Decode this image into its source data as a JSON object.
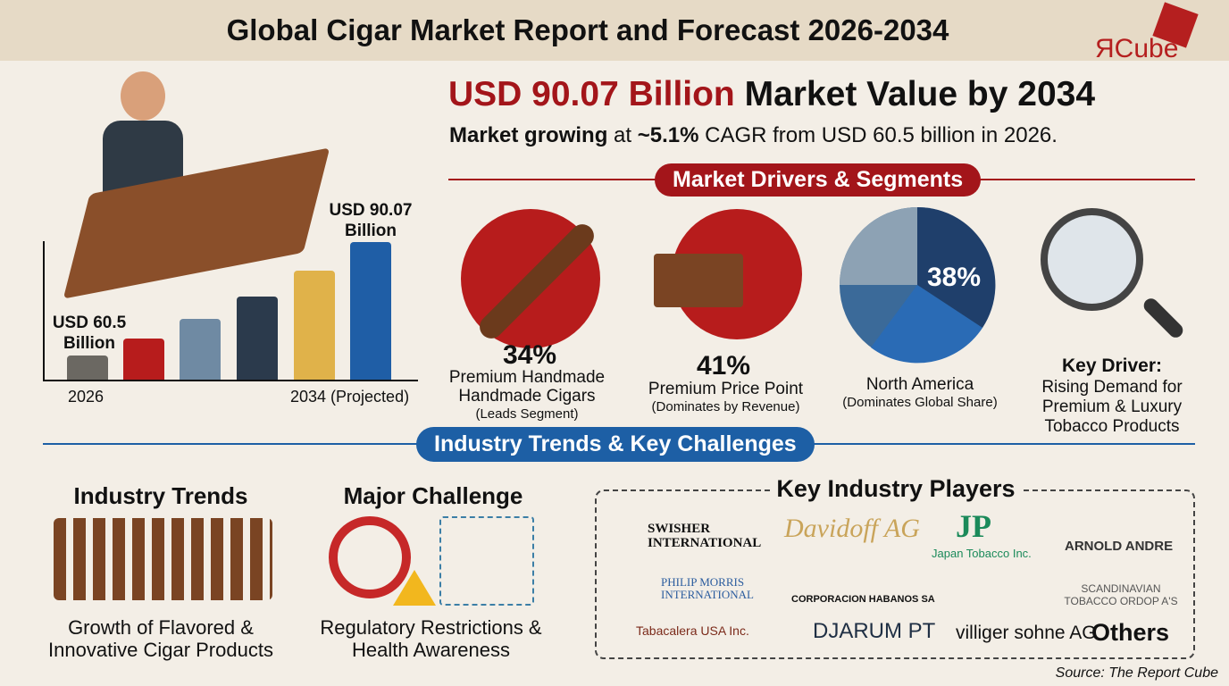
{
  "header": {
    "title": "Global Cigar Market Report and Forecast 2026-2034",
    "logo_text": "ЯCube"
  },
  "headline": {
    "value": "USD 90.07 Billion",
    "rest": "Market Value by 2034",
    "sub_bold": "Market growing",
    "sub_mid": "at",
    "sub_cagr": "~5.1%",
    "sub_rest": "CAGR from USD 60.5 billion in 2026."
  },
  "bar_chart": {
    "start_label": "USD 60.5 Billion",
    "end_label": "USD 90.07 Billion",
    "x_start": "2026",
    "x_end": "2034 (Projected)"
  },
  "drivers": {
    "title": "Market Drivers & Segments",
    "items": [
      {
        "pct": "34%",
        "label": "Premium Handmade Handmade Cigars",
        "note": "(Leads Segment)"
      },
      {
        "pct": "41%",
        "label": "Premium Price Point",
        "note": "(Dominates by Revenue)"
      },
      {
        "pct": "38%",
        "label": "North America",
        "note": "(Dominates Global Share)"
      },
      {
        "pct": "",
        "label": "Key Driver:",
        "note": "Rising Demand for Premium & Luxury Tobacco Products"
      }
    ]
  },
  "trends": {
    "title": "Industry Trends & Key Challenges",
    "industry_trends": {
      "heading": "Industry Trends",
      "text": "Growth of Flavored & Innovative Cigar Products"
    },
    "challenge": {
      "heading": "Major Challenge",
      "text": "Regulatory Restrictions & Health Awareness"
    }
  },
  "players": {
    "title": "Key Industry Players",
    "items": [
      "SWISHER INTERNATIONAL",
      "Davidoff AG",
      "Japan Tobacco Inc.",
      "ARNOLD ANDRE",
      "PHILIP MORRIS INTERNATIONAL",
      "CORPORACION HABANOS SA",
      "SCANDINAVIAN TOBACCO ORDOP A'S",
      "Tabacalera USA Inc.",
      "DJARUM PT",
      "villiger sohne AG",
      "Others"
    ]
  },
  "source": "Source: The Report Cube",
  "colors": {
    "red": "#a3151a",
    "blue": "#1d5fa5",
    "navy": "#1f3f6b"
  }
}
